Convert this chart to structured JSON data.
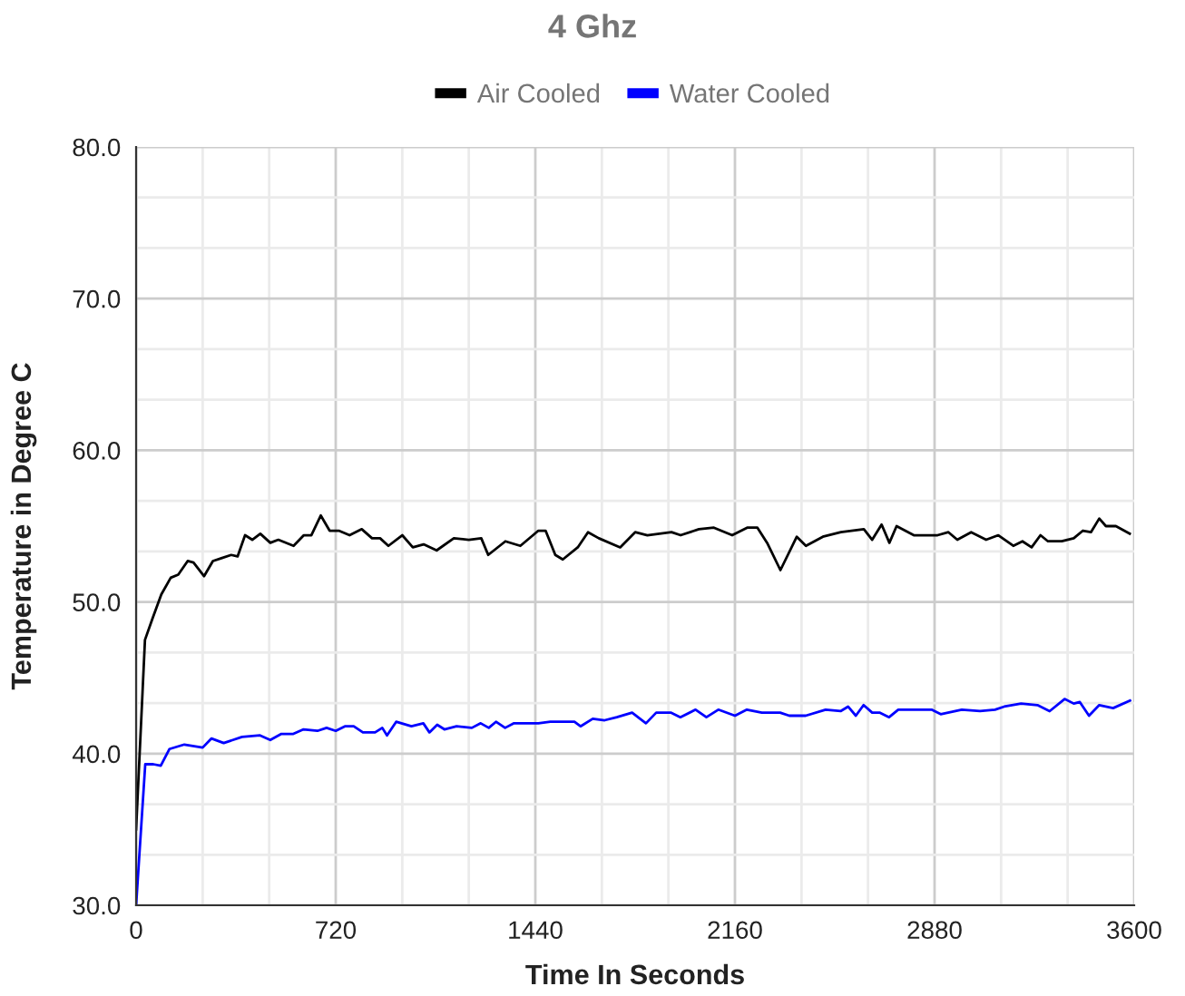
{
  "chart_data": {
    "type": "line",
    "title": "4 Ghz",
    "xlabel": "Time In Seconds",
    "ylabel": "Temperature in Degree C",
    "xlim": [
      0,
      3600
    ],
    "ylim": [
      30,
      80
    ],
    "xticks": [
      0,
      {
        "value": 240,
        "label": null
      },
      {
        "value": 480,
        "label": null
      },
      720,
      {
        "value": 960,
        "label": null
      },
      {
        "value": 1200,
        "label": null
      },
      1440,
      {
        "value": 1680,
        "label": null
      },
      {
        "value": 1920,
        "label": null
      },
      2160,
      {
        "value": 2400,
        "label": null
      },
      {
        "value": 2640,
        "label": null
      },
      2880,
      {
        "value": 3120,
        "label": null
      },
      {
        "value": 3360,
        "label": null
      },
      3600
    ],
    "yticks": [
      {
        "value": 30,
        "label": "30.0"
      },
      {
        "value": 33.333,
        "label": null
      },
      {
        "value": 36.667,
        "label": null
      },
      {
        "value": 40,
        "label": "40.0"
      },
      {
        "value": 43.333,
        "label": null
      },
      {
        "value": 46.667,
        "label": null
      },
      {
        "value": 50,
        "label": "50.0"
      },
      {
        "value": 53.333,
        "label": null
      },
      {
        "value": 56.667,
        "label": null
      },
      {
        "value": 60,
        "label": "60.0"
      },
      {
        "value": 63.333,
        "label": null
      },
      {
        "value": 66.667,
        "label": null
      },
      {
        "value": 70,
        "label": "70.0"
      },
      {
        "value": 73.333,
        "label": null
      },
      {
        "value": 76.667,
        "label": null
      },
      {
        "value": 80,
        "label": "80.0"
      }
    ],
    "grid": true,
    "legend": "top",
    "marker": "none",
    "line_style": "solid",
    "series": [
      {
        "name": "Air Cooled",
        "color": "#000000",
        "x": [
          0,
          32,
          59,
          91,
          125,
          152,
          186,
          207,
          245,
          277,
          310,
          343,
          366,
          393,
          419,
          448,
          484,
          513,
          568,
          605,
          632,
          666,
          698,
          731,
          770,
          814,
          851,
          880,
          910,
          960,
          998,
          1037,
          1084,
          1146,
          1200,
          1245,
          1270,
          1332,
          1386,
          1451,
          1477,
          1512,
          1539,
          1593,
          1630,
          1669,
          1746,
          1800,
          1844,
          1931,
          1964,
          2030,
          2084,
          2110,
          2150,
          2204,
          2241,
          2276,
          2324,
          2383,
          2416,
          2477,
          2542,
          2625,
          2655,
          2689,
          2717,
          2743,
          2805,
          2891,
          2930,
          2962,
          3012,
          3066,
          3110,
          3164,
          3197,
          3230,
          3262,
          3289,
          3339,
          3382,
          3415,
          3444,
          3474,
          3498,
          3534,
          3584
        ],
        "values": [
          35,
          47.5,
          48.9,
          50.5,
          51.6,
          51.8,
          52.7,
          52.6,
          51.7,
          52.7,
          52.9,
          53.1,
          53.0,
          54.4,
          54.1,
          54.5,
          53.9,
          54.1,
          53.7,
          54.4,
          54.4,
          55.7,
          54.7,
          54.7,
          54.4,
          54.8,
          54.2,
          54.2,
          53.7,
          54.4,
          53.6,
          53.8,
          53.4,
          54.2,
          54.1,
          54.2,
          53.1,
          54.0,
          53.7,
          54.7,
          54.7,
          53.1,
          52.8,
          53.6,
          54.6,
          54.2,
          53.6,
          54.6,
          54.4,
          54.6,
          54.4,
          54.8,
          54.9,
          54.7,
          54.4,
          54.9,
          54.9,
          53.9,
          52.1,
          54.3,
          53.7,
          54.3,
          54.6,
          54.8,
          54.1,
          55.1,
          53.9,
          55.0,
          54.4,
          54.4,
          54.6,
          54.1,
          54.6,
          54.1,
          54.4,
          53.7,
          54.0,
          53.6,
          54.4,
          54.0,
          54.0,
          54.2,
          54.7,
          54.6,
          55.5,
          55.0,
          55.0,
          54.5
        ]
      },
      {
        "name": "Water Cooled",
        "color": "#0000ff",
        "x": [
          0,
          33,
          62,
          89,
          120,
          174,
          240,
          272,
          316,
          382,
          447,
          484,
          524,
          567,
          604,
          654,
          687,
          720,
          753,
          785,
          818,
          862,
          888,
          905,
          938,
          993,
          1036,
          1058,
          1086,
          1112,
          1156,
          1211,
          1243,
          1272,
          1298,
          1331,
          1363,
          1451,
          1494,
          1581,
          1603,
          1647,
          1690,
          1734,
          1789,
          1839,
          1876,
          1930,
          1963,
          2018,
          2057,
          2100,
          2160,
          2203,
          2257,
          2323,
          2356,
          2415,
          2487,
          2541,
          2568,
          2596,
          2624,
          2655,
          2683,
          2716,
          2749,
          2814,
          2869,
          2902,
          2978,
          3044,
          3098,
          3131,
          3192,
          3251,
          3295,
          3349,
          3382,
          3404,
          3437,
          3474,
          3524,
          3585
        ],
        "values": [
          30,
          39.3,
          39.3,
          39.2,
          40.3,
          40.6,
          40.4,
          41.0,
          40.7,
          41.1,
          41.2,
          40.9,
          41.3,
          41.3,
          41.6,
          41.5,
          41.7,
          41.5,
          41.8,
          41.8,
          41.4,
          41.4,
          41.7,
          41.2,
          42.1,
          41.8,
          42.0,
          41.4,
          41.9,
          41.6,
          41.8,
          41.7,
          42.0,
          41.7,
          42.1,
          41.7,
          42.0,
          42.0,
          42.1,
          42.1,
          41.8,
          42.3,
          42.2,
          42.4,
          42.7,
          42.0,
          42.7,
          42.7,
          42.4,
          42.9,
          42.4,
          42.9,
          42.5,
          42.9,
          42.7,
          42.7,
          42.5,
          42.5,
          42.9,
          42.8,
          43.1,
          42.5,
          43.2,
          42.7,
          42.7,
          42.4,
          42.9,
          42.9,
          42.9,
          42.6,
          42.9,
          42.8,
          42.9,
          43.1,
          43.3,
          43.2,
          42.8,
          43.6,
          43.3,
          43.4,
          42.5,
          43.2,
          43.0,
          43.5
        ]
      }
    ]
  }
}
